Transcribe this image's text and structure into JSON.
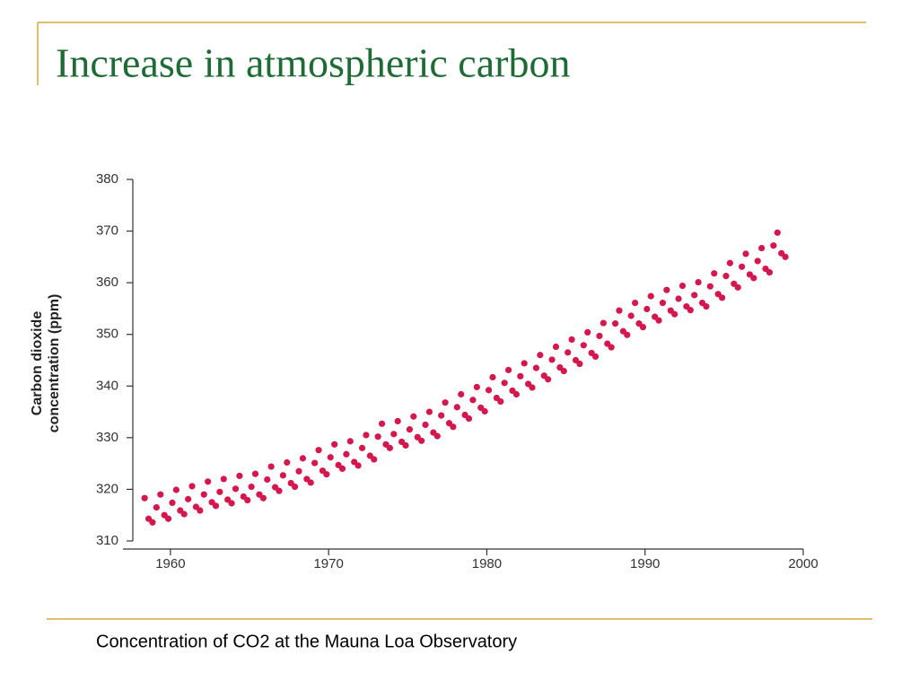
{
  "title": "Increase in atmospheric carbon",
  "caption": "Concentration of CO2 at the Mauna Loa Observatory",
  "chart_data": {
    "type": "scatter",
    "color": "#d4174c",
    "ylabel": [
      "Carbon dioxide",
      "concentration (ppm)"
    ],
    "xlim": [
      1957,
      2000
    ],
    "xticks": [
      1960,
      1970,
      1980,
      1990,
      2000
    ],
    "ylim": [
      310,
      380
    ],
    "yticks": [
      310,
      320,
      330,
      340,
      350,
      360,
      370,
      380
    ],
    "x": [
      1958.37,
      1958.62,
      1958.87,
      1959.12,
      1959.37,
      1959.62,
      1959.87,
      1960.12,
      1960.37,
      1960.62,
      1960.87,
      1961.12,
      1961.37,
      1961.62,
      1961.87,
      1962.12,
      1962.37,
      1962.62,
      1962.87,
      1963.12,
      1963.37,
      1963.62,
      1963.87,
      1964.12,
      1964.37,
      1964.62,
      1964.87,
      1965.12,
      1965.37,
      1965.62,
      1965.87,
      1966.12,
      1966.37,
      1966.62,
      1966.87,
      1967.12,
      1967.37,
      1967.62,
      1967.87,
      1968.12,
      1968.37,
      1968.62,
      1968.87,
      1969.12,
      1969.37,
      1969.62,
      1969.87,
      1970.12,
      1970.37,
      1970.62,
      1970.87,
      1971.12,
      1971.37,
      1971.62,
      1971.87,
      1972.12,
      1972.37,
      1972.62,
      1972.87,
      1973.12,
      1973.37,
      1973.62,
      1973.87,
      1974.12,
      1974.37,
      1974.62,
      1974.87,
      1975.12,
      1975.37,
      1975.62,
      1975.87,
      1976.12,
      1976.37,
      1976.62,
      1976.87,
      1977.12,
      1977.37,
      1977.62,
      1977.87,
      1978.12,
      1978.37,
      1978.62,
      1978.87,
      1979.12,
      1979.37,
      1979.62,
      1979.87,
      1980.12,
      1980.37,
      1980.62,
      1980.87,
      1981.12,
      1981.37,
      1981.62,
      1981.87,
      1982.12,
      1982.37,
      1982.62,
      1982.87,
      1983.12,
      1983.37,
      1983.62,
      1983.87,
      1984.12,
      1984.37,
      1984.62,
      1984.87,
      1985.12,
      1985.37,
      1985.62,
      1985.87,
      1986.12,
      1986.37,
      1986.62,
      1986.87,
      1987.12,
      1987.37,
      1987.62,
      1987.87,
      1988.12,
      1988.37,
      1988.62,
      1988.87,
      1989.12,
      1989.37,
      1989.62,
      1989.87,
      1990.12,
      1990.37,
      1990.62,
      1990.87,
      1991.12,
      1991.37,
      1991.62,
      1991.87,
      1992.12,
      1992.37,
      1992.62,
      1992.87,
      1993.12,
      1993.37,
      1993.62,
      1993.87,
      1994.12,
      1994.37,
      1994.62,
      1994.87,
      1995.12,
      1995.37,
      1995.62,
      1995.87,
      1996.12,
      1996.37,
      1996.62,
      1996.87,
      1997.12,
      1997.37,
      1997.62,
      1997.87,
      1998.12,
      1998.37,
      1998.62,
      1998.87
    ],
    "values": [
      318.3,
      314.3,
      313.6,
      316.5,
      319.0,
      315.0,
      314.3,
      317.4,
      319.9,
      315.9,
      315.2,
      318.1,
      320.6,
      316.6,
      315.9,
      319.0,
      321.5,
      317.5,
      316.8,
      319.5,
      322.0,
      318.0,
      317.3,
      320.1,
      322.6,
      318.6,
      317.9,
      320.5,
      323.0,
      319.0,
      318.3,
      321.9,
      324.4,
      320.4,
      319.7,
      322.7,
      325.2,
      321.2,
      320.5,
      323.5,
      326.0,
      322.0,
      321.3,
      325.1,
      327.6,
      323.6,
      322.9,
      326.2,
      328.7,
      324.7,
      324.0,
      326.8,
      329.3,
      325.3,
      324.6,
      328.0,
      330.5,
      326.5,
      325.8,
      330.2,
      332.7,
      328.7,
      328.0,
      330.7,
      333.2,
      329.2,
      328.5,
      331.6,
      334.1,
      330.1,
      329.4,
      332.5,
      335.0,
      331.0,
      330.3,
      334.3,
      336.8,
      332.8,
      332.1,
      335.9,
      338.4,
      334.4,
      333.7,
      337.3,
      339.8,
      335.8,
      335.1,
      339.2,
      341.7,
      337.7,
      337.0,
      340.6,
      343.1,
      339.1,
      338.4,
      341.9,
      344.4,
      340.4,
      339.7,
      343.5,
      346.0,
      342.0,
      341.3,
      345.1,
      347.6,
      343.6,
      342.9,
      346.5,
      349.0,
      345.0,
      344.3,
      347.9,
      350.4,
      346.4,
      345.7,
      349.7,
      352.2,
      348.2,
      347.5,
      352.1,
      354.6,
      350.6,
      349.9,
      353.6,
      356.1,
      352.1,
      351.4,
      354.9,
      357.4,
      353.4,
      352.7,
      356.1,
      358.6,
      354.6,
      353.9,
      356.9,
      359.4,
      355.4,
      354.7,
      357.6,
      360.1,
      356.1,
      355.4,
      359.3,
      361.8,
      357.8,
      357.1,
      361.3,
      363.8,
      359.8,
      359.1,
      363.1,
      365.6,
      361.6,
      360.9,
      364.2,
      366.7,
      362.7,
      362.0,
      367.2,
      369.7,
      365.7,
      365.0
    ]
  }
}
